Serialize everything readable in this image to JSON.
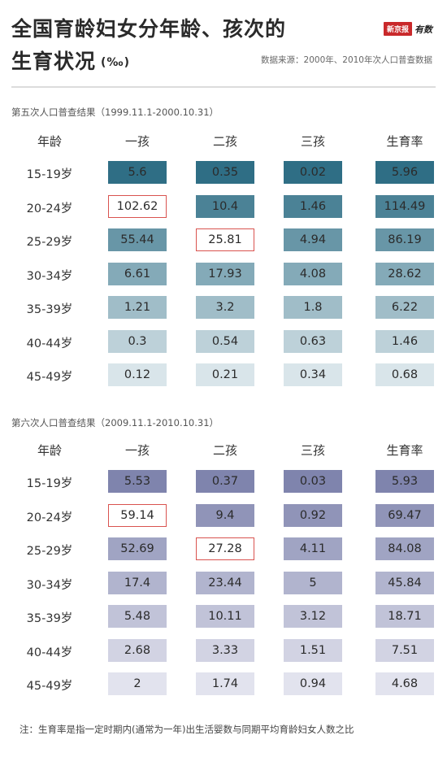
{
  "header": {
    "title_line1": "全国育龄妇女分年龄、孩次的",
    "title_line2": "生育状况",
    "title_unit": "(‰)",
    "brand_badge": "新京报",
    "brand_script": "有数",
    "source": "数据来源：2000年、2010年次人口普查数据"
  },
  "note": "注：生育率是指一定时期内(通常为一年)出生活婴数与同期平均育龄妇女人数之比",
  "colors": {
    "census5_dark": "#2f6e85",
    "census5_light": "#d9e5ea",
    "census6_dark": "#7f84ad",
    "census6_light": "#e2e3ee",
    "highlight_border": "#d9534f"
  },
  "chart_data": [
    {
      "type": "table",
      "title": "第五次人口普查结果（1999.11.1-2000.10.31）",
      "columns": [
        "年龄",
        "一孩",
        "二孩",
        "三孩",
        "生育率"
      ],
      "rows": [
        {
          "age": "15-19岁",
          "values": [
            "5.6",
            "0.35",
            "0.02",
            "5.96"
          ]
        },
        {
          "age": "20-24岁",
          "values": [
            "102.62",
            "10.4",
            "1.46",
            "114.49"
          ]
        },
        {
          "age": "25-29岁",
          "values": [
            "55.44",
            "25.81",
            "4.94",
            "86.19"
          ]
        },
        {
          "age": "30-34岁",
          "values": [
            "6.61",
            "17.93",
            "4.08",
            "28.62"
          ]
        },
        {
          "age": "35-39岁",
          "values": [
            "1.21",
            "3.2",
            "1.8",
            "6.22"
          ]
        },
        {
          "age": "40-44岁",
          "values": [
            "0.3",
            "0.54",
            "0.63",
            "1.46"
          ]
        },
        {
          "age": "45-49岁",
          "values": [
            "0.12",
            "0.21",
            "0.34",
            "0.68"
          ]
        }
      ],
      "highlighted_cells": [
        {
          "row": 1,
          "col": 0
        },
        {
          "row": 2,
          "col": 1
        }
      ]
    },
    {
      "type": "table",
      "title": "第六次人口普查结果（2009.11.1-2010.10.31）",
      "columns": [
        "年龄",
        "一孩",
        "二孩",
        "三孩",
        "生育率"
      ],
      "rows": [
        {
          "age": "15-19岁",
          "values": [
            "5.53",
            "0.37",
            "0.03",
            "5.93"
          ]
        },
        {
          "age": "20-24岁",
          "values": [
            "59.14",
            "9.4",
            "0.92",
            "69.47"
          ]
        },
        {
          "age": "25-29岁",
          "values": [
            "52.69",
            "27.28",
            "4.11",
            "84.08"
          ]
        },
        {
          "age": "30-34岁",
          "values": [
            "17.4",
            "23.44",
            "5",
            "45.84"
          ]
        },
        {
          "age": "35-39岁",
          "values": [
            "5.48",
            "10.11",
            "3.12",
            "18.71"
          ]
        },
        {
          "age": "40-44岁",
          "values": [
            "2.68",
            "3.33",
            "1.51",
            "7.51"
          ]
        },
        {
          "age": "45-49岁",
          "values": [
            "2",
            "1.74",
            "0.94",
            "4.68"
          ]
        }
      ],
      "highlighted_cells": [
        {
          "row": 1,
          "col": 0
        },
        {
          "row": 2,
          "col": 1
        }
      ]
    }
  ]
}
